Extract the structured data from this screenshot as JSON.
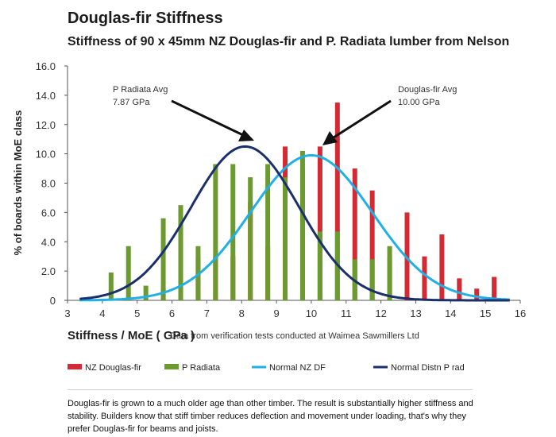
{
  "header": {
    "title": "Douglas-fir Stiffness",
    "subtitle": "Stiffness of 90 x 45mm NZ Douglas-fir and P. Radiata lumber from Nelson"
  },
  "caption": "Douglas-fir is grown to a much older age than other timber. The result is substantially higher stiffness and stability. Builders know that stiff timber reduces deflection and movement under loading, that's why they prefer Douglas-fir for beams and joists.",
  "chart_data": {
    "type": "bar",
    "xlabel": "Stiffness / MoE ( GPa )",
    "xlabel_note": "Data from verification tests conducted at Waimea Sawmillers Ltd",
    "ylabel": "% of boards within MoE class",
    "xlim": [
      3,
      16
    ],
    "ylim": [
      0,
      16
    ],
    "xticks": [
      "3",
      "4",
      "5",
      "6",
      "7",
      "8",
      "9",
      "10",
      "11",
      "12",
      "13",
      "14",
      "15",
      "16"
    ],
    "yticks": [
      "0",
      "2.0",
      "4.0",
      "6.0",
      "8.0",
      "10.0",
      "12.0",
      "14.0",
      "16.0"
    ],
    "grid": false,
    "legend_position": "bottom",
    "series": [
      {
        "name": "NZ Douglas-fir",
        "kind": "bar",
        "color": "#d42a33",
        "x": [
          5.75,
          6.25,
          6.75,
          7.25,
          7.75,
          8.25,
          8.75,
          9.25,
          9.75,
          10.25,
          10.75,
          11.25,
          11.75,
          12.25,
          12.75,
          13.25,
          13.75,
          14.25,
          14.75,
          15.25
        ],
        "values": [
          0.8,
          0.8,
          3.0,
          3.0,
          3.0,
          6.7,
          3.7,
          10.5,
          9.0,
          10.5,
          13.5,
          9.0,
          7.5,
          3.0,
          6.0,
          3.0,
          4.5,
          1.5,
          0.8,
          1.6
        ]
      },
      {
        "name": "P Radiata",
        "kind": "bar",
        "color": "#6b9a2f",
        "x": [
          4.25,
          4.75,
          5.25,
          5.75,
          6.25,
          6.75,
          7.25,
          7.75,
          8.25,
          8.75,
          9.25,
          9.75,
          10.25,
          10.75,
          11.25,
          11.75,
          12.25
        ],
        "values": [
          1.9,
          3.7,
          1.0,
          5.6,
          6.5,
          3.7,
          9.3,
          9.3,
          8.4,
          9.3,
          8.4,
          10.2,
          4.7,
          4.7,
          2.8,
          2.8,
          3.7
        ]
      },
      {
        "name": "Normal NZ DF",
        "kind": "line",
        "color": "#1fb0e6",
        "mean": 10.0,
        "sd": 1.75,
        "peak": 9.9
      },
      {
        "name": "Normal Distn P rad",
        "kind": "line",
        "color": "#1b2f6b",
        "mean": 8.1,
        "sd": 1.55,
        "peak": 10.5
      }
    ],
    "annotations": [
      {
        "line1": "P Radiata Avg",
        "line2": "7.87 GPa",
        "x": 7.87
      },
      {
        "line1": "Douglas-fir Avg",
        "line2": "10.00 GPa",
        "x": 10.0
      }
    ]
  }
}
